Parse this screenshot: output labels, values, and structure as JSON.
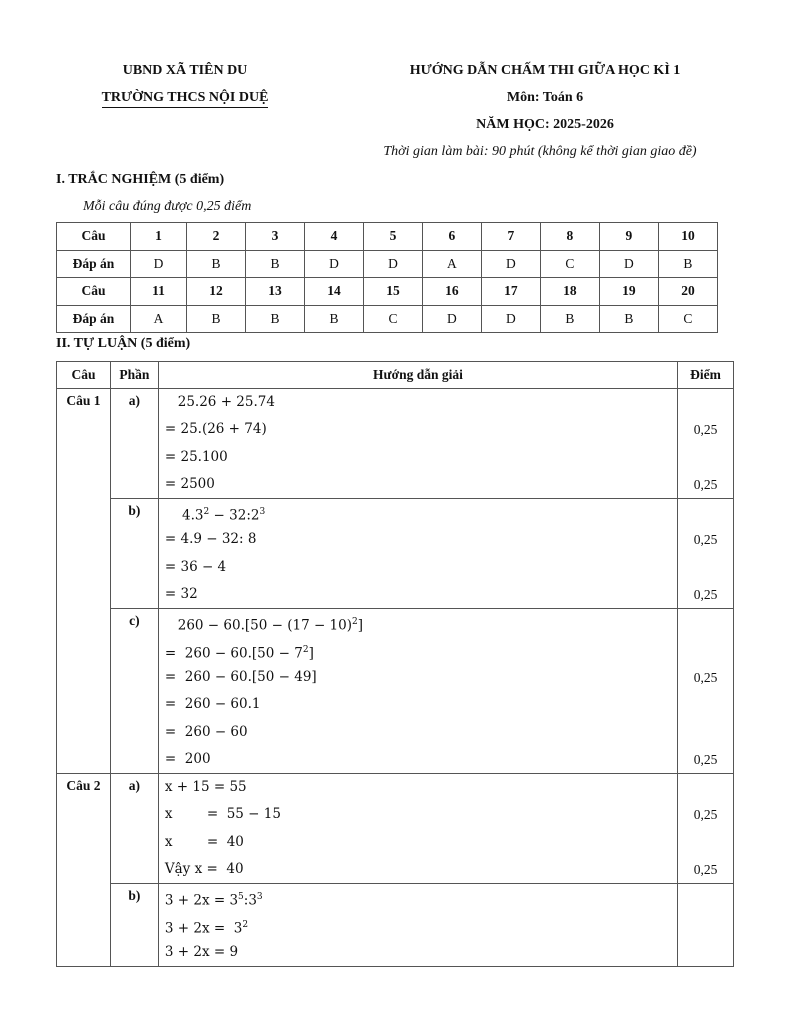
{
  "header": {
    "left_line1": "UBND XÃ TIÊN DU",
    "left_line2": "TRƯỜNG THCS NỘI DUỆ",
    "right_line1": "HƯỚNG DẪN CHẤM THI GIỮA HỌC KÌ 1",
    "right_line2": "Môn: Toán 6",
    "right_line3": "NĂM HỌC: 2025-2026",
    "right_line4": "Thời gian làm bài: 90 phút (không kể thời gian giao đề)"
  },
  "section1": {
    "title": "I. TRẮC NGHIỆM (5 điểm)",
    "note": "Mỗi câu đúng được 0,25 điểm",
    "row_label_question": "Câu",
    "row_label_answer": "Đáp án",
    "questions_1": [
      "1",
      "2",
      "3",
      "4",
      "5",
      "6",
      "7",
      "8",
      "9",
      "10"
    ],
    "answers_1": [
      "D",
      "B",
      "B",
      "D",
      "D",
      "A",
      "D",
      "C",
      "D",
      "B"
    ],
    "questions_2": [
      "11",
      "12",
      "13",
      "14",
      "15",
      "16",
      "17",
      "18",
      "19",
      "20"
    ],
    "answers_2": [
      "A",
      "B",
      "B",
      "B",
      "C",
      "D",
      "D",
      "B",
      "B",
      "C"
    ]
  },
  "section2": {
    "title": "II. TỰ LUẬN (5 điểm)",
    "columns": [
      "Câu",
      "Phần",
      "Hướng dẫn giải",
      "Điểm"
    ],
    "questions": [
      {
        "label": "Câu 1",
        "parts": [
          {
            "label": "a)",
            "lines": [
              {
                "parts": [
                  {
                    "t": "   25.26 + 25.74"
                  }
                ],
                "score": ""
              },
              {
                "parts": [
                  {
                    "t": "= 25.(26 + 74)"
                  }
                ],
                "score": "0,25"
              },
              {
                "parts": [
                  {
                    "t": "= 25.100"
                  }
                ],
                "score": ""
              },
              {
                "parts": [
                  {
                    "t": "= 2500"
                  }
                ],
                "score": "0,25"
              }
            ]
          },
          {
            "label": "b)",
            "lines": [
              {
                "parts": [
                  {
                    "t": "    4.3"
                  },
                  {
                    "sup": "2"
                  },
                  {
                    "t": " − 32:2"
                  },
                  {
                    "sup": "3"
                  }
                ],
                "score": ""
              },
              {
                "parts": [
                  {
                    "t": "= 4.9 − 32: 8"
                  }
                ],
                "score": "0,25"
              },
              {
                "parts": [
                  {
                    "t": "= 36 − 4"
                  }
                ],
                "score": ""
              },
              {
                "parts": [
                  {
                    "t": "= 32"
                  }
                ],
                "score": "0,25"
              }
            ]
          },
          {
            "label": "c)",
            "lines": [
              {
                "parts": [
                  {
                    "t": "   260 − 60.[50 − (17 − 10)"
                  },
                  {
                    "sup": "2"
                  },
                  {
                    "t": "]"
                  }
                ],
                "score": ""
              },
              {
                "parts": [
                  {
                    "t": "=  260 − 60.[50 − 7"
                  },
                  {
                    "sup": "2"
                  },
                  {
                    "t": "]"
                  }
                ],
                "score": ""
              },
              {
                "parts": [
                  {
                    "t": "=  260 − 60.[50 − 49]"
                  }
                ],
                "score": "0,25"
              },
              {
                "parts": [
                  {
                    "t": "=  260 − 60.1"
                  }
                ],
                "score": ""
              },
              {
                "parts": [
                  {
                    "t": "=  260 − 60"
                  }
                ],
                "score": ""
              },
              {
                "parts": [
                  {
                    "t": "=  200"
                  }
                ],
                "score": "0,25"
              }
            ]
          }
        ]
      },
      {
        "label": "Câu 2",
        "parts": [
          {
            "label": "a)",
            "lines": [
              {
                "parts": [
                  {
                    "t": "x + 15 = 55"
                  }
                ],
                "score": ""
              },
              {
                "parts": [
                  {
                    "t": "x        =  55 − 15"
                  }
                ],
                "score": "0,25"
              },
              {
                "parts": [
                  {
                    "t": "x        =  40"
                  }
                ],
                "score": ""
              },
              {
                "parts": [
                  {
                    "t": "Vậy x =  40"
                  }
                ],
                "score": "0,25"
              }
            ]
          },
          {
            "label": "b)",
            "lines": [
              {
                "parts": [
                  {
                    "t": "3 + 2x = 3"
                  },
                  {
                    "sup": "5"
                  },
                  {
                    "t": ":3"
                  },
                  {
                    "sup": "3"
                  }
                ],
                "score": ""
              },
              {
                "parts": [
                  {
                    "t": "3 + 2x =  3"
                  },
                  {
                    "sup": "2"
                  }
                ],
                "score": ""
              },
              {
                "parts": [
                  {
                    "t": "3 + 2x = 9"
                  }
                ],
                "score": ""
              }
            ]
          }
        ]
      }
    ]
  }
}
